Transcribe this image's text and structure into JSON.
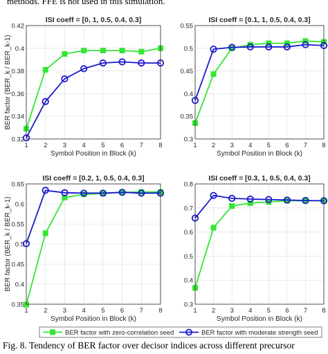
{
  "figure": {
    "top_fragment": "methods. FFE is not used in this simulation.",
    "caption": "Fig. 8.   Tendency of BER factor over decisor indices across different precursor"
  },
  "legend": {
    "placement": "bottom-center",
    "entries": [
      {
        "label": "BER factor with zero-correlation seed",
        "color": "#33e633",
        "marker": "square"
      },
      {
        "label": "BER factor with moderate strength seed",
        "color": "#1a1acc",
        "marker": "circle"
      }
    ]
  },
  "colors": {
    "green": "#33e633",
    "blue": "#1a1acc",
    "grid": "#dcdcdc",
    "axis": "#262626"
  },
  "chart_data": [
    {
      "type": "line",
      "title": "ISI coeff = [0,  1,  0.5,  0.4,  0.3]",
      "xlabel": "Symbol Position in Block (k)",
      "ylabel": "BER factor (BER_k / BER_k-1)",
      "x": [
        1,
        2,
        3,
        4,
        5,
        6,
        7,
        8
      ],
      "xlim": [
        1,
        8
      ],
      "ylim": [
        0.32,
        0.42
      ],
      "yticks": [
        0.32,
        0.34,
        0.36,
        0.38,
        0.4,
        0.42
      ],
      "ytick_labels": [
        "0.32",
        "0.34",
        "0.36",
        "0.38",
        "0.4",
        "0.42"
      ],
      "grid": true,
      "series": [
        {
          "name": "BER factor with zero-correlation seed",
          "values": [
            0.329,
            0.381,
            0.395,
            0.398,
            0.398,
            0.398,
            0.397,
            0.4
          ]
        },
        {
          "name": "BER factor with moderate strength seed",
          "values": [
            0.321,
            0.353,
            0.373,
            0.382,
            0.387,
            0.388,
            0.387,
            0.387
          ]
        }
      ]
    },
    {
      "type": "line",
      "title": "ISI coeff = [0.1,  1,  0.5,  0.4,  0.3]",
      "xlabel": "Symbol Position in Block (k)",
      "ylabel": "",
      "x": [
        1,
        2,
        3,
        4,
        5,
        6,
        7,
        8
      ],
      "xlim": [
        1,
        8
      ],
      "ylim": [
        0.3,
        0.55
      ],
      "yticks": [
        0.3,
        0.35,
        0.4,
        0.45,
        0.5,
        0.55
      ],
      "ytick_labels": [
        "0.3",
        "0.35",
        "0.4",
        "0.45",
        "0.5",
        "0.55"
      ],
      "grid": true,
      "series": [
        {
          "name": "BER factor with zero-correlation seed",
          "values": [
            0.335,
            0.443,
            0.5,
            0.508,
            0.511,
            0.511,
            0.516,
            0.514
          ]
        },
        {
          "name": "BER factor with moderate strength seed",
          "values": [
            0.385,
            0.498,
            0.502,
            0.503,
            0.503,
            0.503,
            0.508,
            0.506
          ]
        }
      ]
    },
    {
      "type": "line",
      "title": "ISI coeff = [0.2,  1,  0.5,  0.4,  0.3]",
      "xlabel": "Symbol Position in Block (k)",
      "ylabel": "BER factor (BER_k / BER_k-1)",
      "x": [
        1,
        2,
        3,
        4,
        5,
        6,
        7,
        8
      ],
      "xlim": [
        1,
        8
      ],
      "ylim": [
        0.35,
        0.65
      ],
      "yticks": [
        0.35,
        0.4,
        0.45,
        0.5,
        0.55,
        0.6,
        0.65
      ],
      "ytick_labels": [
        "0.35",
        "0.4",
        "0.45",
        "0.5",
        "0.55",
        "0.6",
        "0.65"
      ],
      "grid": true,
      "series": [
        {
          "name": "BER factor with zero-correlation seed",
          "values": [
            0.349,
            0.527,
            0.616,
            0.624,
            0.626,
            0.629,
            0.63,
            0.63
          ]
        },
        {
          "name": "BER factor with moderate strength seed",
          "values": [
            0.501,
            0.634,
            0.628,
            0.627,
            0.627,
            0.629,
            0.627,
            0.627
          ]
        }
      ]
    },
    {
      "type": "line",
      "title": "ISI coeff = [0.3,  1,  0.5,  0.4,  0.3]",
      "xlabel": "Symbol Position in Block (k)",
      "ylabel": "",
      "x": [
        1,
        2,
        3,
        4,
        5,
        6,
        7,
        8
      ],
      "xlim": [
        1,
        8
      ],
      "ylim": [
        0.3,
        0.8
      ],
      "yticks": [
        0.3,
        0.4,
        0.5,
        0.6,
        0.7,
        0.8
      ],
      "ytick_labels": [
        "0.3",
        "0.4",
        "0.5",
        "0.6",
        "0.7",
        "0.8"
      ],
      "grid": true,
      "series": [
        {
          "name": "BER factor with zero-correlation seed",
          "values": [
            0.368,
            0.618,
            0.708,
            0.72,
            0.725,
            0.73,
            0.73,
            0.73
          ]
        },
        {
          "name": "BER factor with moderate strength seed",
          "values": [
            0.658,
            0.752,
            0.74,
            0.737,
            0.735,
            0.733,
            0.731,
            0.73
          ]
        }
      ]
    }
  ]
}
